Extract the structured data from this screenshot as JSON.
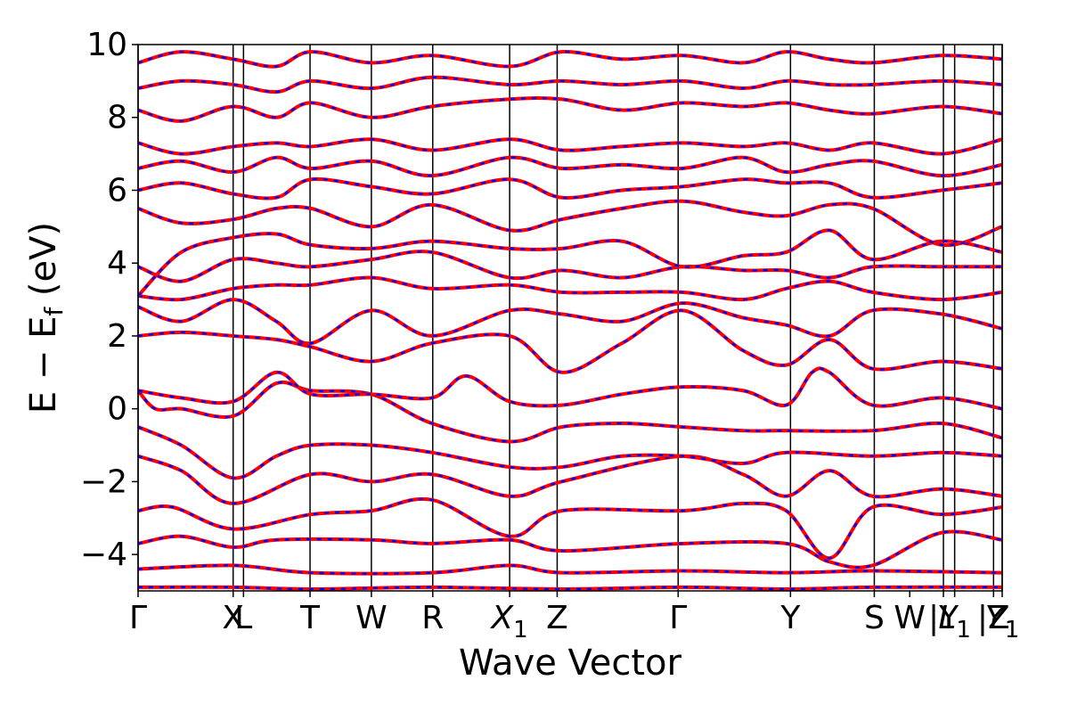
{
  "chart_data": {
    "type": "line",
    "title": "",
    "xlabel": "Wave Vector",
    "ylabel": "E − E_f (eV)",
    "ylabel_parts": {
      "main": "E − E",
      "sub": "f",
      "unit": " (eV)"
    },
    "ylim": [
      -5,
      10
    ],
    "yticks": [
      -4,
      -2,
      0,
      2,
      4,
      6,
      8,
      10
    ],
    "ytick_labels": [
      "−4",
      "−2",
      "0",
      "2",
      "4",
      "6",
      "8",
      "10"
    ],
    "xlim": [
      0,
      1
    ],
    "high_symmetry_points": [
      {
        "label": "Γ",
        "position": 0.0
      },
      {
        "label": "X",
        "position": 0.11
      },
      {
        "label": "L",
        "position": 0.122
      },
      {
        "label": "T",
        "position": 0.199
      },
      {
        "label": "W",
        "position": 0.27
      },
      {
        "label": "R",
        "position": 0.341
      },
      {
        "label": "X",
        "sub": "1",
        "position": 0.43
      },
      {
        "label": "Z",
        "position": 0.485
      },
      {
        "label": "Γ",
        "position": 0.625
      },
      {
        "label": "Y",
        "position": 0.755
      },
      {
        "label": "S",
        "position": 0.852
      },
      {
        "label": "W",
        "position": 0.893
      },
      {
        "label": "|Y",
        "position": 0.932
      },
      {
        "label": "L",
        "sub": "1",
        "position": 0.945
      },
      {
        "label": "|Z",
        "position": 0.99
      },
      {
        "label": "Y",
        "sub": "1",
        "position": 1.0
      }
    ],
    "x_label_text": "Γ  XL  T  W  R  X1 Z  Γ  Y  S W |Y|L1|Z|Y1",
    "vline_positions": [
      0.0,
      0.11,
      0.122,
      0.199,
      0.27,
      0.341,
      0.43,
      0.485,
      0.625,
      0.755,
      0.852,
      0.932,
      0.945,
      0.99,
      1.0
    ],
    "series_colors": {
      "dft": "#ff0000",
      "model": "#0000ff"
    },
    "bands": [
      [
        [
          0,
          -4.9
        ],
        [
          0.11,
          -4.9
        ],
        [
          0.2,
          -4.95
        ],
        [
          0.34,
          -4.9
        ],
        [
          0.49,
          -4.95
        ],
        [
          0.63,
          -4.9
        ],
        [
          0.75,
          -4.95
        ],
        [
          0.85,
          -4.9
        ],
        [
          1,
          -4.9
        ]
      ],
      [
        [
          0,
          -4.4
        ],
        [
          0.11,
          -4.3
        ],
        [
          0.2,
          -4.5
        ],
        [
          0.34,
          -4.5
        ],
        [
          0.43,
          -4.3
        ],
        [
          0.49,
          -4.5
        ],
        [
          0.63,
          -4.45
        ],
        [
          0.75,
          -4.5
        ],
        [
          0.85,
          -4.45
        ],
        [
          1,
          -4.5
        ]
      ],
      [
        [
          0,
          -3.7
        ],
        [
          0.05,
          -3.5
        ],
        [
          0.11,
          -3.8
        ],
        [
          0.16,
          -3.6
        ],
        [
          0.27,
          -3.6
        ],
        [
          0.34,
          -3.7
        ],
        [
          0.43,
          -3.6
        ],
        [
          0.49,
          -3.9
        ],
        [
          0.63,
          -3.7
        ],
        [
          0.75,
          -3.7
        ],
        [
          0.8,
          -4.2
        ],
        [
          0.85,
          -4.3
        ],
        [
          0.93,
          -3.4
        ],
        [
          1,
          -3.6
        ]
      ],
      [
        [
          0,
          -2.8
        ],
        [
          0.04,
          -2.7
        ],
        [
          0.11,
          -3.3
        ],
        [
          0.2,
          -2.9
        ],
        [
          0.27,
          -2.8
        ],
        [
          0.34,
          -2.5
        ],
        [
          0.43,
          -3.5
        ],
        [
          0.49,
          -2.8
        ],
        [
          0.63,
          -2.8
        ],
        [
          0.7,
          -2.6
        ],
        [
          0.75,
          -2.8
        ],
        [
          0.8,
          -4.1
        ],
        [
          0.85,
          -2.7
        ],
        [
          0.93,
          -2.9
        ],
        [
          1,
          -2.7
        ]
      ],
      [
        [
          0,
          -1.3
        ],
        [
          0.05,
          -1.7
        ],
        [
          0.11,
          -2.6
        ],
        [
          0.2,
          -1.8
        ],
        [
          0.27,
          -2.0
        ],
        [
          0.34,
          -1.8
        ],
        [
          0.43,
          -2.4
        ],
        [
          0.49,
          -2.0
        ],
        [
          0.63,
          -1.3
        ],
        [
          0.7,
          -1.8
        ],
        [
          0.75,
          -2.4
        ],
        [
          0.8,
          -1.7
        ],
        [
          0.85,
          -2.4
        ],
        [
          0.93,
          -2.2
        ],
        [
          1,
          -2.4
        ]
      ],
      [
        [
          0,
          -0.5
        ],
        [
          0.05,
          -1.0
        ],
        [
          0.11,
          -1.9
        ],
        [
          0.16,
          -1.3
        ],
        [
          0.2,
          -1.0
        ],
        [
          0.27,
          -1.0
        ],
        [
          0.34,
          -1.2
        ],
        [
          0.43,
          -1.6
        ],
        [
          0.49,
          -1.6
        ],
        [
          0.56,
          -1.3
        ],
        [
          0.63,
          -1.3
        ],
        [
          0.7,
          -1.5
        ],
        [
          0.75,
          -1.2
        ],
        [
          0.85,
          -1.3
        ],
        [
          0.93,
          -1.2
        ],
        [
          1,
          -1.3
        ]
      ],
      [
        [
          0,
          0.5
        ],
        [
          0.02,
          0.0
        ],
        [
          0.05,
          0.0
        ],
        [
          0.11,
          -0.2
        ],
        [
          0.16,
          0.7
        ],
        [
          0.2,
          0.5
        ],
        [
          0.27,
          0.4
        ],
        [
          0.34,
          -0.4
        ],
        [
          0.43,
          -0.9
        ],
        [
          0.49,
          -0.5
        ],
        [
          0.56,
          -0.4
        ],
        [
          0.63,
          -0.5
        ],
        [
          0.7,
          -0.6
        ],
        [
          0.75,
          -0.6
        ],
        [
          0.85,
          -0.6
        ],
        [
          0.93,
          -0.4
        ],
        [
          1,
          -0.8
        ]
      ],
      [
        [
          0,
          0.5
        ],
        [
          0.05,
          0.3
        ],
        [
          0.11,
          0.2
        ],
        [
          0.16,
          1.0
        ],
        [
          0.2,
          0.4
        ],
        [
          0.27,
          0.4
        ],
        [
          0.34,
          0.3
        ],
        [
          0.38,
          0.9
        ],
        [
          0.43,
          0.2
        ],
        [
          0.49,
          0.1
        ],
        [
          0.56,
          0.4
        ],
        [
          0.63,
          0.6
        ],
        [
          0.7,
          0.5
        ],
        [
          0.75,
          0.1
        ],
        [
          0.78,
          1.0
        ],
        [
          0.8,
          1.0
        ],
        [
          0.85,
          0.1
        ],
        [
          0.93,
          0.3
        ],
        [
          1,
          0.0
        ]
      ],
      [
        [
          0,
          2.0
        ],
        [
          0.05,
          2.1
        ],
        [
          0.11,
          2.0
        ],
        [
          0.16,
          1.9
        ],
        [
          0.2,
          1.7
        ],
        [
          0.27,
          1.3
        ],
        [
          0.34,
          1.8
        ],
        [
          0.43,
          2.0
        ],
        [
          0.49,
          1.0
        ],
        [
          0.56,
          1.8
        ],
        [
          0.63,
          2.7
        ],
        [
          0.7,
          1.6
        ],
        [
          0.75,
          1.2
        ],
        [
          0.8,
          1.9
        ],
        [
          0.85,
          1.1
        ],
        [
          0.93,
          1.3
        ],
        [
          1,
          1.1
        ]
      ],
      [
        [
          0,
          2.8
        ],
        [
          0.05,
          2.4
        ],
        [
          0.11,
          3.0
        ],
        [
          0.16,
          2.4
        ],
        [
          0.2,
          1.8
        ],
        [
          0.27,
          2.7
        ],
        [
          0.34,
          2.0
        ],
        [
          0.43,
          2.7
        ],
        [
          0.49,
          2.6
        ],
        [
          0.56,
          2.4
        ],
        [
          0.63,
          2.9
        ],
        [
          0.7,
          2.5
        ],
        [
          0.75,
          2.3
        ],
        [
          0.8,
          2.0
        ],
        [
          0.85,
          2.7
        ],
        [
          0.93,
          2.6
        ],
        [
          1,
          2.2
        ]
      ],
      [
        [
          0,
          3.1
        ],
        [
          0.05,
          3.0
        ],
        [
          0.11,
          3.3
        ],
        [
          0.16,
          3.4
        ],
        [
          0.2,
          3.4
        ],
        [
          0.27,
          3.6
        ],
        [
          0.34,
          3.3
        ],
        [
          0.43,
          3.4
        ],
        [
          0.49,
          3.2
        ],
        [
          0.56,
          3.2
        ],
        [
          0.63,
          3.2
        ],
        [
          0.7,
          3.0
        ],
        [
          0.75,
          3.3
        ],
        [
          0.8,
          3.5
        ],
        [
          0.85,
          3.2
        ],
        [
          0.93,
          3.0
        ],
        [
          1,
          3.2
        ]
      ],
      [
        [
          0,
          3.9
        ],
        [
          0.05,
          3.5
        ],
        [
          0.11,
          4.1
        ],
        [
          0.16,
          4.0
        ],
        [
          0.2,
          3.9
        ],
        [
          0.27,
          4.1
        ],
        [
          0.34,
          4.3
        ],
        [
          0.43,
          3.6
        ],
        [
          0.49,
          3.8
        ],
        [
          0.56,
          3.6
        ],
        [
          0.63,
          3.9
        ],
        [
          0.7,
          3.8
        ],
        [
          0.75,
          3.8
        ],
        [
          0.8,
          3.6
        ],
        [
          0.85,
          3.9
        ],
        [
          0.93,
          3.9
        ],
        [
          1,
          3.9
        ]
      ],
      [
        [
          0,
          3.1
        ],
        [
          0.05,
          4.3
        ],
        [
          0.11,
          4.7
        ],
        [
          0.16,
          4.8
        ],
        [
          0.2,
          4.5
        ],
        [
          0.27,
          4.4
        ],
        [
          0.34,
          4.6
        ],
        [
          0.43,
          4.4
        ],
        [
          0.49,
          4.4
        ],
        [
          0.56,
          4.6
        ],
        [
          0.63,
          3.9
        ],
        [
          0.7,
          4.2
        ],
        [
          0.75,
          4.3
        ],
        [
          0.8,
          4.9
        ],
        [
          0.85,
          4.1
        ],
        [
          0.93,
          4.6
        ],
        [
          1,
          4.3
        ]
      ],
      [
        [
          0,
          5.5
        ],
        [
          0.05,
          5.1
        ],
        [
          0.11,
          5.2
        ],
        [
          0.16,
          5.5
        ],
        [
          0.2,
          5.5
        ],
        [
          0.27,
          5.0
        ],
        [
          0.34,
          5.6
        ],
        [
          0.43,
          4.9
        ],
        [
          0.49,
          5.2
        ],
        [
          0.56,
          5.5
        ],
        [
          0.63,
          5.7
        ],
        [
          0.7,
          5.4
        ],
        [
          0.75,
          5.3
        ],
        [
          0.8,
          5.6
        ],
        [
          0.85,
          5.5
        ],
        [
          0.93,
          4.5
        ],
        [
          1,
          5.0
        ]
      ],
      [
        [
          0,
          6.0
        ],
        [
          0.05,
          6.2
        ],
        [
          0.11,
          5.9
        ],
        [
          0.16,
          5.8
        ],
        [
          0.2,
          6.3
        ],
        [
          0.27,
          6.1
        ],
        [
          0.34,
          5.9
        ],
        [
          0.43,
          6.3
        ],
        [
          0.49,
          5.8
        ],
        [
          0.56,
          6.0
        ],
        [
          0.63,
          6.1
        ],
        [
          0.7,
          6.3
        ],
        [
          0.75,
          6.2
        ],
        [
          0.8,
          6.2
        ],
        [
          0.85,
          5.8
        ],
        [
          0.93,
          6.0
        ],
        [
          1,
          6.2
        ]
      ],
      [
        [
          0,
          6.6
        ],
        [
          0.05,
          6.8
        ],
        [
          0.11,
          6.5
        ],
        [
          0.16,
          6.9
        ],
        [
          0.2,
          6.6
        ],
        [
          0.27,
          6.8
        ],
        [
          0.34,
          6.4
        ],
        [
          0.43,
          6.9
        ],
        [
          0.49,
          6.6
        ],
        [
          0.56,
          6.7
        ],
        [
          0.63,
          6.6
        ],
        [
          0.7,
          6.9
        ],
        [
          0.75,
          6.5
        ],
        [
          0.8,
          6.7
        ],
        [
          0.85,
          6.8
        ],
        [
          0.93,
          6.4
        ],
        [
          1,
          6.7
        ]
      ],
      [
        [
          0,
          7.3
        ],
        [
          0.05,
          7.0
        ],
        [
          0.11,
          7.2
        ],
        [
          0.16,
          7.3
        ],
        [
          0.2,
          7.2
        ],
        [
          0.27,
          7.4
        ],
        [
          0.34,
          7.1
        ],
        [
          0.43,
          7.4
        ],
        [
          0.49,
          7.1
        ],
        [
          0.56,
          7.2
        ],
        [
          0.63,
          7.3
        ],
        [
          0.7,
          7.2
        ],
        [
          0.75,
          7.3
        ],
        [
          0.8,
          7.1
        ],
        [
          0.85,
          7.3
        ],
        [
          0.93,
          7.0
        ],
        [
          1,
          7.4
        ]
      ],
      [
        [
          0,
          8.2
        ],
        [
          0.05,
          7.9
        ],
        [
          0.11,
          8.3
        ],
        [
          0.16,
          8.0
        ],
        [
          0.2,
          8.4
        ],
        [
          0.27,
          8.0
        ],
        [
          0.34,
          8.3
        ],
        [
          0.43,
          8.5
        ],
        [
          0.49,
          8.5
        ],
        [
          0.56,
          8.2
        ],
        [
          0.63,
          8.4
        ],
        [
          0.7,
          8.3
        ],
        [
          0.75,
          8.4
        ],
        [
          0.8,
          8.2
        ],
        [
          0.85,
          8.1
        ],
        [
          0.93,
          8.3
        ],
        [
          1,
          8.1
        ]
      ],
      [
        [
          0,
          8.8
        ],
        [
          0.05,
          9.0
        ],
        [
          0.11,
          8.9
        ],
        [
          0.16,
          8.7
        ],
        [
          0.2,
          9.0
        ],
        [
          0.27,
          8.8
        ],
        [
          0.34,
          9.1
        ],
        [
          0.43,
          8.9
        ],
        [
          0.49,
          9.0
        ],
        [
          0.56,
          8.9
        ],
        [
          0.63,
          9.0
        ],
        [
          0.7,
          8.8
        ],
        [
          0.75,
          9.0
        ],
        [
          0.8,
          8.9
        ],
        [
          0.85,
          8.9
        ],
        [
          0.93,
          9.0
        ],
        [
          1,
          8.9
        ]
      ],
      [
        [
          0,
          9.5
        ],
        [
          0.05,
          9.8
        ],
        [
          0.11,
          9.6
        ],
        [
          0.16,
          9.4
        ],
        [
          0.2,
          9.8
        ],
        [
          0.27,
          9.5
        ],
        [
          0.34,
          9.7
        ],
        [
          0.43,
          9.4
        ],
        [
          0.49,
          9.8
        ],
        [
          0.56,
          9.6
        ],
        [
          0.63,
          9.7
        ],
        [
          0.7,
          9.5
        ],
        [
          0.75,
          9.8
        ],
        [
          0.8,
          9.6
        ],
        [
          0.85,
          9.5
        ],
        [
          0.93,
          9.7
        ],
        [
          1,
          9.6
        ]
      ]
    ]
  }
}
